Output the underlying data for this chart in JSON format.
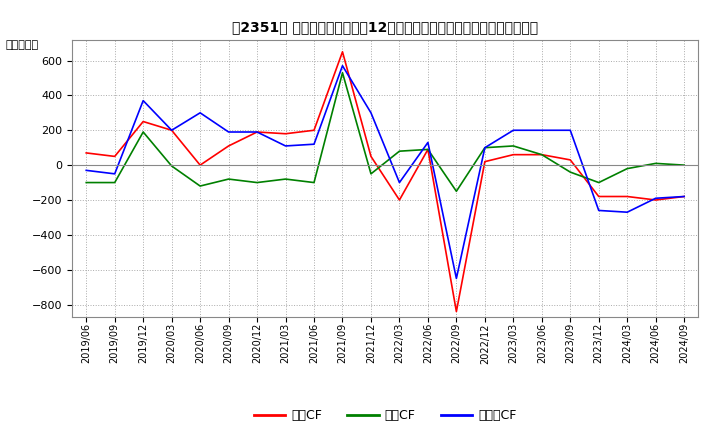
{
  "title_text": "【2351】 キャッシュフローの12か月移動合計の対前年同期増減額の推移",
  "ylabel": "（百万円）",
  "ylim": [
    -870,
    720
  ],
  "yticks": [
    -800,
    -600,
    -400,
    -200,
    0,
    200,
    400,
    600
  ],
  "legend_labels": [
    "営業CF",
    "投資CF",
    "フリーCF"
  ],
  "line_colors": [
    "#ff0000",
    "#008000",
    "#0000ff"
  ],
  "background_color": "#ffffff",
  "grid_color": "#aaaaaa",
  "x_labels": [
    "2019/06",
    "2019/09",
    "2019/12",
    "2020/03",
    "2020/06",
    "2020/09",
    "2020/12",
    "2021/03",
    "2021/06",
    "2021/09",
    "2021/12",
    "2022/03",
    "2022/06",
    "2022/09",
    "2022/12",
    "2023/03",
    "2023/06",
    "2023/09",
    "2023/12",
    "2024/03",
    "2024/06",
    "2024/09"
  ],
  "series": {
    "営業CF": [
      70,
      50,
      250,
      200,
      0,
      110,
      190,
      180,
      200,
      650,
      50,
      -200,
      90,
      -840,
      20,
      60,
      60,
      30,
      -180,
      -180,
      -200,
      -180
    ],
    "投資CF": [
      -100,
      -100,
      190,
      -5,
      -120,
      -80,
      -100,
      -80,
      -100,
      530,
      -50,
      80,
      90,
      -150,
      100,
      110,
      60,
      -40,
      -100,
      -20,
      10,
      0
    ],
    "フリーCF": [
      -30,
      -50,
      370,
      200,
      300,
      190,
      190,
      110,
      120,
      570,
      300,
      -100,
      130,
      -650,
      100,
      200,
      200,
      200,
      -260,
      -270,
      -190,
      -180
    ]
  }
}
